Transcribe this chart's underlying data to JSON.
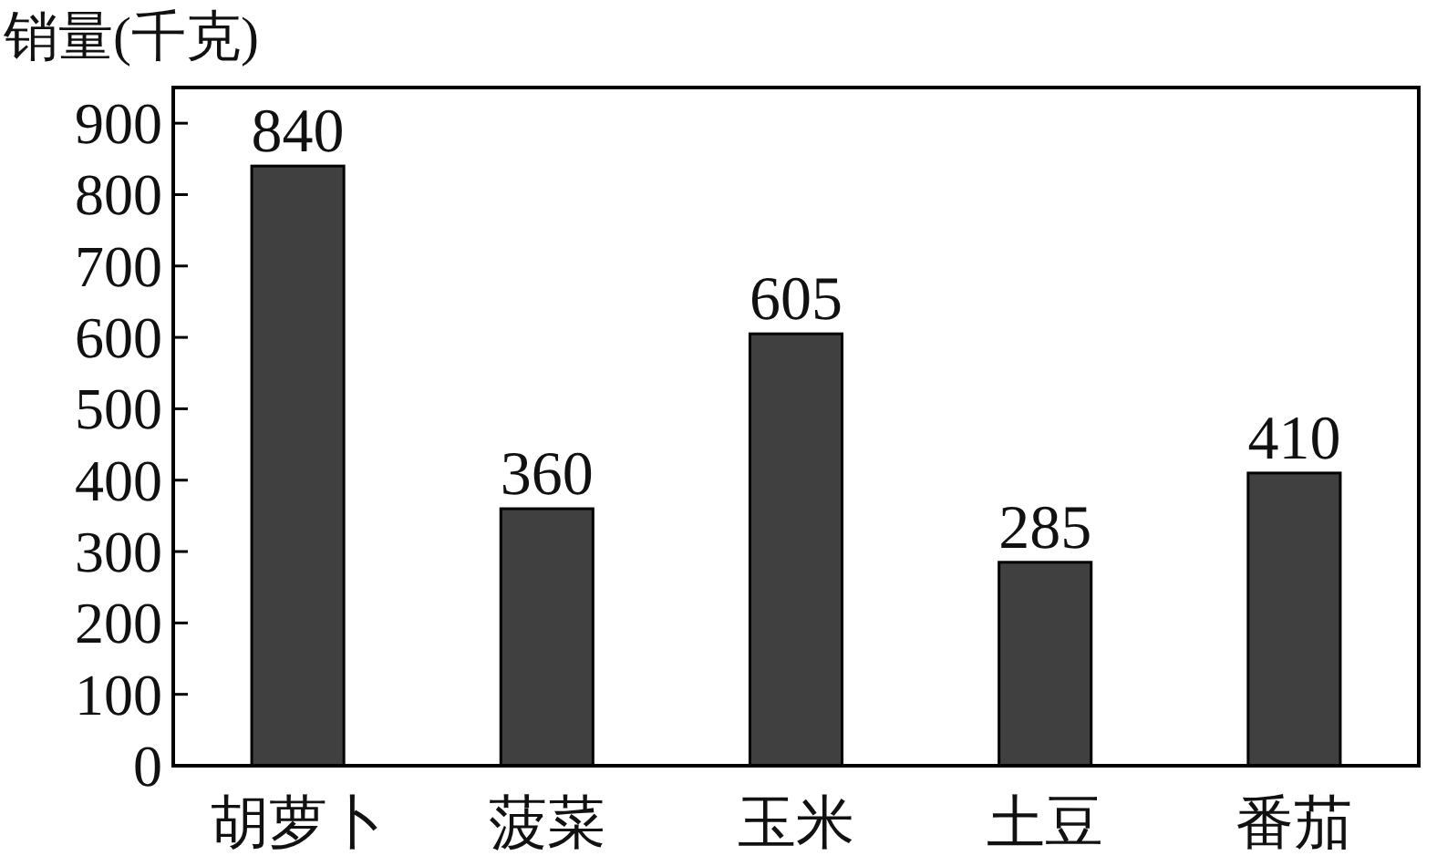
{
  "chart_data": {
    "type": "bar",
    "ylabel": "销量(千克)",
    "categories": [
      "胡萝卜",
      "菠菜",
      "玉米",
      "土豆",
      "番茄"
    ],
    "values": [
      840,
      360,
      605,
      285,
      410
    ],
    "color": "#404040",
    "ylim": [
      0,
      950
    ],
    "yticks": [
      0,
      100,
      200,
      300,
      400,
      500,
      600,
      700,
      800,
      900
    ],
    "data_labels": true
  }
}
